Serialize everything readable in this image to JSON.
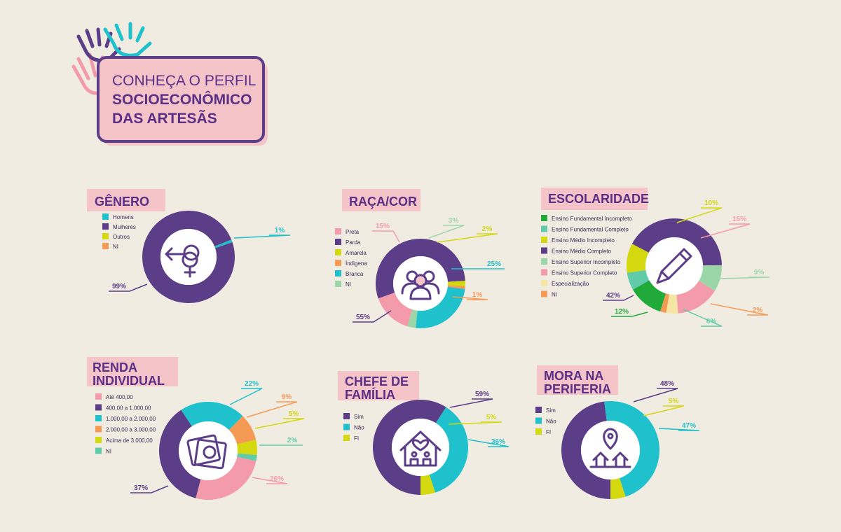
{
  "header": {
    "line1": "CONHEÇA O PERFIL",
    "line2": "SOCIOECONÔMICO",
    "line3": "DAS ARTESÃS"
  },
  "colors": {
    "purple": "#5c3d88",
    "cyan": "#1ec1cc",
    "lime": "#d3d80f",
    "orange": "#f59a55",
    "pink": "#f49bab",
    "sage": "#9bd6a9",
    "teal": "#5fcba8",
    "green": "#1faa3a",
    "cream": "#f6e6a4",
    "tag": "#f5c4c8",
    "text": "#5a2f86"
  },
  "chart_data": [
    {
      "id": "genero",
      "type": "pie",
      "title_lines": [
        "GÊNERO"
      ],
      "icon": "gender-icon",
      "slices": [
        {
          "label": "Homens",
          "value": 1,
          "display": "1%",
          "color": "#1ec1cc"
        },
        {
          "label": "Mulheres",
          "value": 99,
          "display": "99%",
          "color": "#5c3d88"
        },
        {
          "label": "Outros",
          "value": 0,
          "display": "",
          "color": "#d3d80f"
        },
        {
          "label": "NI",
          "value": 0,
          "display": "",
          "color": "#f59a55"
        }
      ]
    },
    {
      "id": "raca",
      "type": "pie",
      "title_lines": [
        "RAÇA/COR"
      ],
      "icon": "people-icon",
      "slices": [
        {
          "label": "Preta",
          "value": 15,
          "display": "15%",
          "color": "#f49bab"
        },
        {
          "label": "Parda",
          "value": 55,
          "display": "55%",
          "color": "#5c3d88"
        },
        {
          "label": "Amarela",
          "value": 2,
          "display": "2%",
          "color": "#d3d80f"
        },
        {
          "label": "Índigena",
          "value": 1,
          "display": "1%",
          "color": "#f59a55"
        },
        {
          "label": "Branca",
          "value": 25,
          "display": "25%",
          "color": "#1ec1cc"
        },
        {
          "label": "NI",
          "value": 3,
          "display": "3%",
          "color": "#9bd6a9"
        }
      ]
    },
    {
      "id": "escolaridade",
      "type": "pie",
      "title_lines": [
        "ESCOLARIDADE"
      ],
      "icon": "pencil-icon",
      "slices": [
        {
          "label": "Ensino Fundamental Incompleto",
          "value": 12,
          "display": "12%",
          "color": "#1faa3a"
        },
        {
          "label": "Ensino Fundamental Completo",
          "value": 6,
          "display": "6%",
          "color": "#5fcba8"
        },
        {
          "label": "Ensino Médio Incompleto",
          "value": 10,
          "display": "10%",
          "color": "#d3d80f"
        },
        {
          "label": "Ensino Médio Completo",
          "value": 42,
          "display": "42%",
          "color": "#5c3d88"
        },
        {
          "label": "Ensino Superior Incompleto",
          "value": 9,
          "display": "9%",
          "color": "#9bd6a9"
        },
        {
          "label": "Ensino Superior Completo",
          "value": 15,
          "display": "15%",
          "color": "#f49bab"
        },
        {
          "label": "Especialização",
          "value": 4,
          "display": "",
          "color": "#f6e6a4"
        },
        {
          "label": "NI",
          "value": 2,
          "display": "2%",
          "color": "#f59a55"
        }
      ]
    },
    {
      "id": "renda",
      "type": "pie",
      "title_lines": [
        "RENDA",
        "INDIVIDUAL"
      ],
      "icon": "money-icon",
      "slices": [
        {
          "label": "Até 400,00",
          "value": 26,
          "display": "26%",
          "color": "#f49bab"
        },
        {
          "label": "400,00 a 1.000,00",
          "value": 37,
          "display": "37%",
          "color": "#5c3d88"
        },
        {
          "label": "1.000,00 a 2.000,00",
          "value": 22,
          "display": "22%",
          "color": "#1ec1cc"
        },
        {
          "label": "2.000,00 a 3.000,00",
          "value": 9,
          "display": "9%",
          "color": "#f59a55"
        },
        {
          "label": "Acima de 3.000,00",
          "value": 5,
          "display": "5%",
          "color": "#d3d80f"
        },
        {
          "label": "NI",
          "value": 2,
          "display": "2%",
          "color": "#5fcba8"
        }
      ]
    },
    {
      "id": "chefe",
      "type": "pie",
      "title_lines": [
        "CHEFE DE",
        "FAMÍLIA"
      ],
      "icon": "family-house-icon",
      "slices": [
        {
          "label": "Sim",
          "value": 59,
          "display": "59%",
          "color": "#5c3d88"
        },
        {
          "label": "Não",
          "value": 36,
          "display": "36%",
          "color": "#1ec1cc"
        },
        {
          "label": "FI",
          "value": 5,
          "display": "5%",
          "color": "#d3d80f"
        }
      ]
    },
    {
      "id": "periferia",
      "type": "pie",
      "title_lines": [
        "MORA NA",
        "PERIFERIA"
      ],
      "icon": "location-houses-icon",
      "slices": [
        {
          "label": "Sim",
          "value": 48,
          "display": "48%",
          "color": "#5c3d88"
        },
        {
          "label": "Não",
          "value": 47,
          "display": "47%",
          "color": "#1ec1cc"
        },
        {
          "label": "FI",
          "value": 5,
          "display": "5%",
          "color": "#d3d80f"
        }
      ]
    }
  ]
}
